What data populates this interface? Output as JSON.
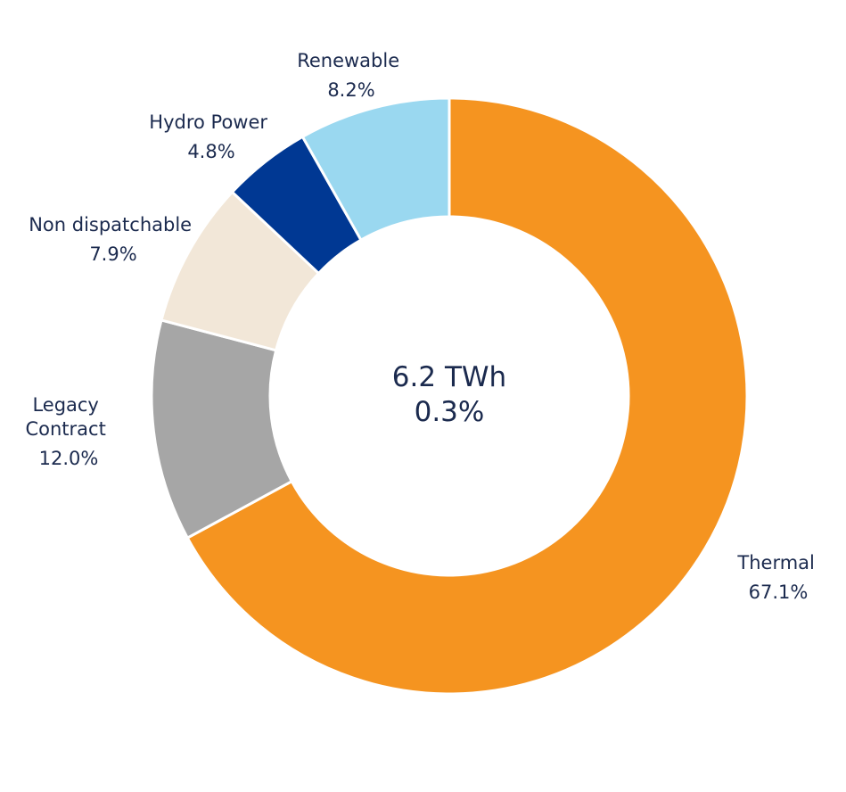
{
  "chart_data": {
    "type": "pie",
    "style": "donut",
    "center": {
      "line1": "6.2 TWh",
      "line2": "0.3%"
    },
    "slices": [
      {
        "name": "Thermal",
        "label_lines": [
          "Thermal"
        ],
        "value": 67.1,
        "value_label": "67.1%",
        "color": "#f59420"
      },
      {
        "name": "Legacy Contract",
        "label_lines": [
          "Legacy",
          "Contract"
        ],
        "value": 12.0,
        "value_label": "12.0%",
        "color": "#a6a6a6"
      },
      {
        "name": "Non dispatchable",
        "label_lines": [
          "Non dispatchable"
        ],
        "value": 7.9,
        "value_label": "7.9%",
        "color": "#f2e7d8"
      },
      {
        "name": "Hydro Power",
        "label_lines": [
          "Hydro Power"
        ],
        "value": 4.8,
        "value_label": "4.8%",
        "color": "#003893"
      },
      {
        "name": "Renewable",
        "label_lines": [
          "Renewable"
        ],
        "value": 8.2,
        "value_label": "8.2%",
        "color": "#9ad8f0"
      }
    ],
    "start": "12 o'clock",
    "direction": "clockwise",
    "legend": "none",
    "text_color": "#1b2a4e"
  }
}
